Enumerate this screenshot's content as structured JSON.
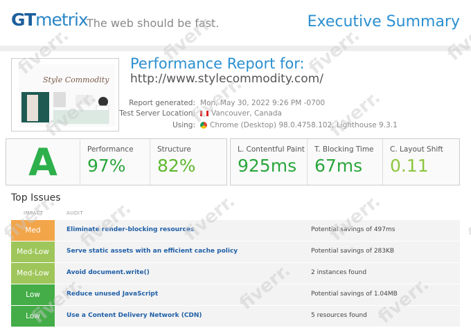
{
  "header": {
    "logo_a": "GT",
    "logo_b": "metrix",
    "tagline": "The web should be fast.",
    "title": "Executive Summary"
  },
  "report": {
    "title": "Performance Report for:",
    "url": "http://www.stylecommodity.com/",
    "details": [
      {
        "label": "Report generated:",
        "value": "Mon, May 30, 2022 9:26 PM -0700"
      },
      {
        "label": "Test Server Location:",
        "value": "Vancouver, Canada"
      },
      {
        "label": "Using:",
        "value": "Chrome (Desktop) 98.0.4758.102, Lighthouse 9.3.1"
      }
    ]
  },
  "grade": "A",
  "scores": [
    {
      "label": "Performance",
      "value": "97%"
    },
    {
      "label": "Structure",
      "value": "82%"
    }
  ],
  "vitals": [
    {
      "label": "L. Contentful Paint",
      "value": "925ms"
    },
    {
      "label": "T. Blocking Time",
      "value": "67ms"
    },
    {
      "label": "C. Layout Shift",
      "value": "0.11"
    }
  ],
  "issues": {
    "title": "Top Issues",
    "columns": [
      "IMPACT",
      "AUDIT"
    ],
    "rows": [
      {
        "impact": "Med",
        "audit": "Eliminate render-blocking resources",
        "note": "Potential savings of 497ms"
      },
      {
        "impact": "Med-Low",
        "audit": "Serve static assets with an efficient cache policy",
        "note": "Potential savings of 283KB"
      },
      {
        "impact": "Med-Low",
        "audit": "Avoid document.write()",
        "note": "2 instances found"
      },
      {
        "impact": "Low",
        "audit": "Reduce unused JavaScript",
        "note": "Potential savings of 1.04MB"
      },
      {
        "impact": "Low",
        "audit": "Use a Content Delivery Network (CDN)",
        "note": "5 resources found"
      }
    ]
  },
  "watermark": "fiverr."
}
